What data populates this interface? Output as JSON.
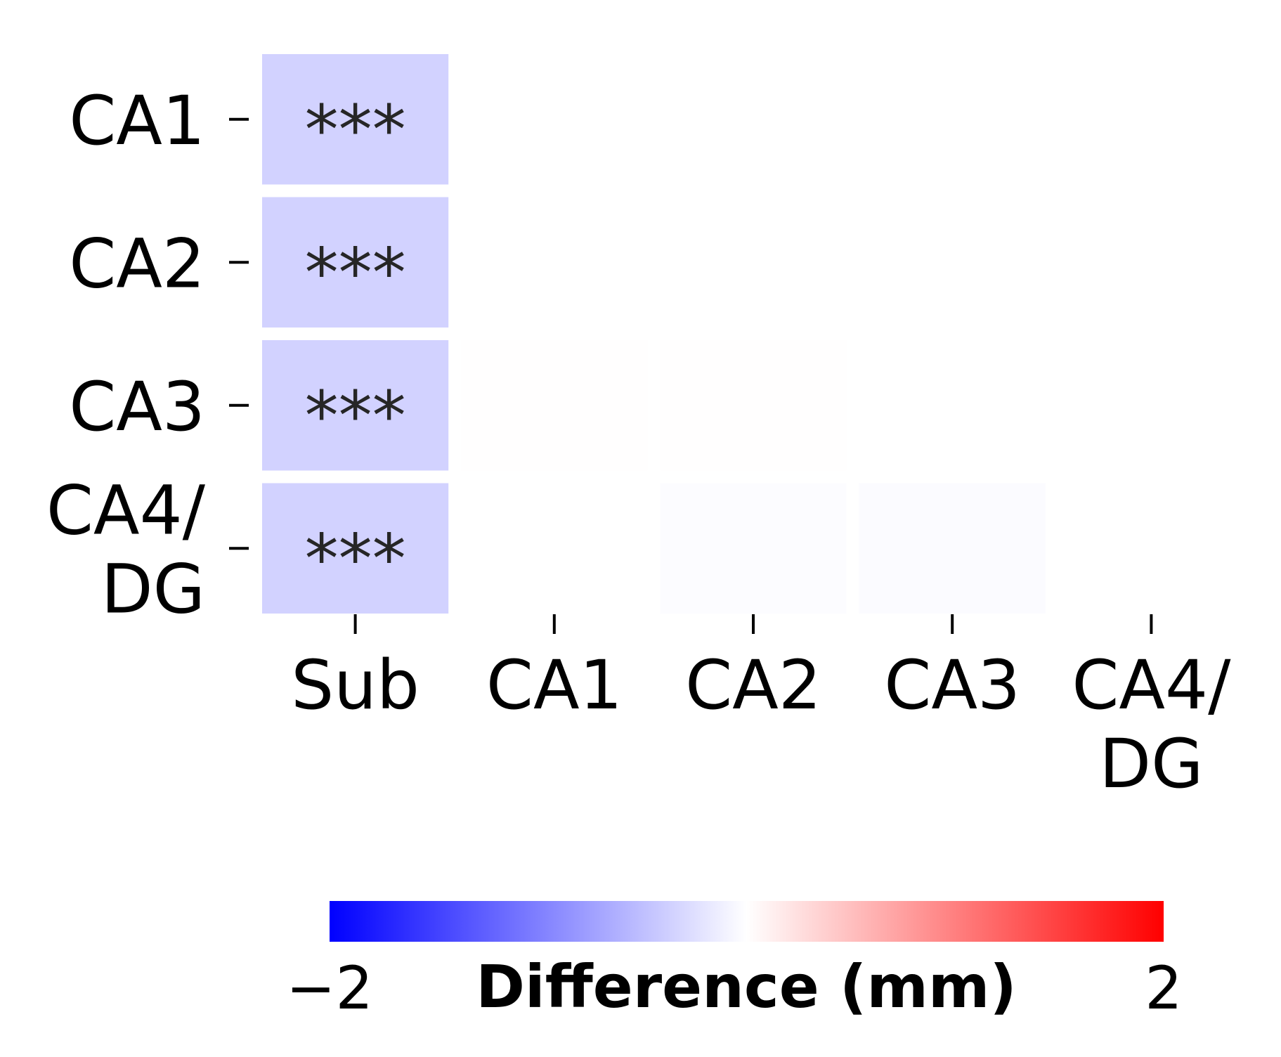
{
  "chart_data": {
    "type": "heatmap",
    "title": "",
    "x_categories": [
      "Sub",
      "CA1",
      "CA2",
      "CA3",
      "CA4/\nDG"
    ],
    "y_categories": [
      "CA1",
      "CA2",
      "CA3",
      "CA4/\nDG"
    ],
    "values": [
      [
        -0.35,
        0.0,
        0.0,
        0.0,
        0.0
      ],
      [
        -0.35,
        null,
        0.0,
        0.0,
        0.0
      ],
      [
        -0.35,
        0.01,
        0.01,
        null,
        0.0
      ],
      [
        -0.35,
        0.0,
        -0.02,
        -0.03,
        null
      ]
    ],
    "annotations": [
      [
        "***",
        "",
        "",
        "",
        ""
      ],
      [
        "***",
        "",
        "",
        "",
        ""
      ],
      [
        "***",
        "",
        "",
        "",
        ""
      ],
      [
        "***",
        "",
        "",
        "",
        ""
      ]
    ],
    "colormap": "bwr",
    "colors": {
      "low": "#0000ff",
      "mid": "#ffffff",
      "high": "#ff0000",
      "cell_gap": "#ffffff"
    },
    "colorbar": {
      "label": "Difference (mm)",
      "range": [
        -2,
        2
      ],
      "ticks": [
        "−2",
        "2"
      ],
      "orientation": "horizontal",
      "position": "bottom"
    },
    "grid": false
  }
}
